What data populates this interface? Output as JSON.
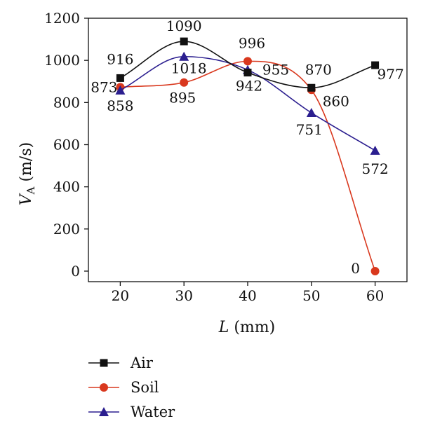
{
  "chart_data": {
    "type": "line",
    "x": [
      20,
      30,
      40,
      50,
      60
    ],
    "xlabel_italic": "L",
    "xlabel_rest": " (mm)",
    "ylabel_var": "V",
    "ylabel_sub": "A",
    "ylabel_rest": " (m/s)",
    "xlim": [
      15,
      65
    ],
    "ylim": [
      -50,
      1200
    ],
    "xticks": [
      20,
      30,
      40,
      50,
      60
    ],
    "yticks": [
      0,
      200,
      400,
      600,
      800,
      1000,
      1200
    ],
    "grid": false,
    "legend_position": "bottom-left",
    "series": [
      {
        "name": "Air",
        "color": "#111111",
        "marker": "square",
        "values": [
          916,
          1090,
          942,
          870,
          977
        ],
        "labels": [
          "916",
          "1090",
          "942",
          "870",
          "977"
        ]
      },
      {
        "name": "Soil",
        "color": "#d9381e",
        "marker": "circle",
        "values": [
          873,
          895,
          996,
          860,
          0
        ],
        "labels": [
          "873",
          "895",
          "996",
          "860",
          "0"
        ]
      },
      {
        "name": "Water",
        "color": "#2b1e8f",
        "marker": "triangle",
        "values": [
          858,
          1018,
          955,
          751,
          572
        ],
        "labels": [
          "858",
          "1018",
          "955",
          "751",
          "572"
        ]
      }
    ]
  }
}
